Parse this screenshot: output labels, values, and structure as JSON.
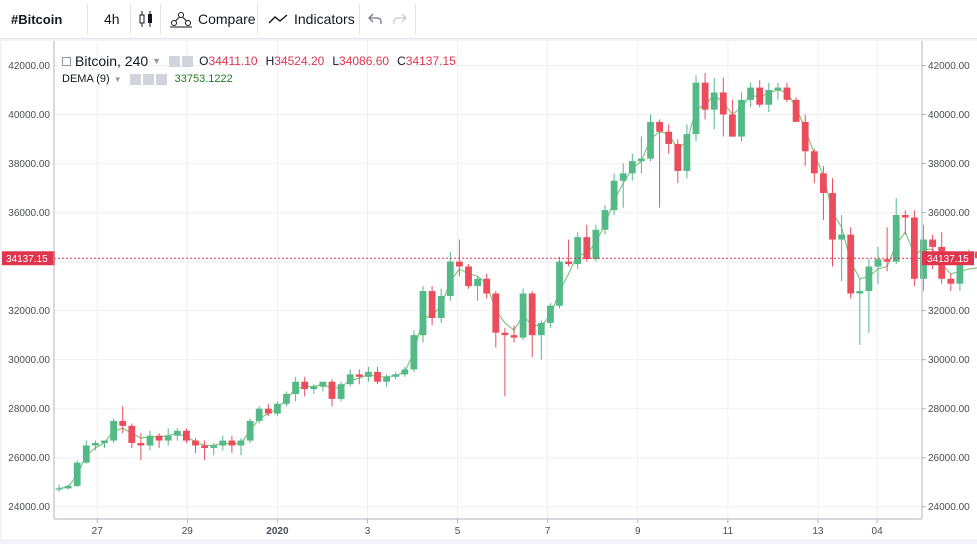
{
  "toolbar": {
    "symbol": "#Bitcoin",
    "interval": "4h",
    "compare_label": "Compare",
    "indicators_label": "Indicators"
  },
  "legend": {
    "symbol": "Bitcoin, 240",
    "o_label": "O",
    "o_value": "34411.10",
    "h_label": "H",
    "h_value": "34524.20",
    "l_label": "L",
    "l_value": "34086.60",
    "c_label": "C",
    "c_value": "34137.15",
    "indicator_name": "DEMA (9)",
    "indicator_value": "33753.1222"
  },
  "price_label": "34137.15",
  "colors": {
    "up": "#53b987",
    "down": "#eb4d5c",
    "dema": "#83c587",
    "price_line": "#e0354f"
  },
  "chart_data": {
    "type": "candlestick",
    "ylim": [
      23500,
      43000
    ],
    "y_ticks": [
      "42000.00",
      "40000.00",
      "38000.00",
      "36000.00",
      "34000.00",
      "32000.00",
      "30000.00",
      "28000.00",
      "26000.00",
      "24000.00"
    ],
    "y_tick_values": [
      42000,
      40000,
      38000,
      36000,
      34000,
      32000,
      30000,
      28000,
      26000,
      24000
    ],
    "x_ticks": [
      "27",
      "29",
      "2020",
      "3",
      "5",
      "7",
      "9",
      "11",
      "13",
      "04"
    ],
    "x_tick_index": [
      4.2,
      14.1,
      24.0,
      33.9,
      43.8,
      53.7,
      63.6,
      73.5,
      83.4,
      89.9
    ],
    "last_price": 34137.15,
    "ohlc": [
      [
        24700,
        24900,
        24600,
        24750
      ],
      [
        24750,
        24900,
        24700,
        24850
      ],
      [
        24850,
        25900,
        24800,
        25800
      ],
      [
        25800,
        26700,
        25750,
        26500
      ],
      [
        26500,
        26700,
        26300,
        26600
      ],
      [
        26600,
        26700,
        26400,
        26700
      ],
      [
        26700,
        27600,
        26600,
        27500
      ],
      [
        27500,
        28100,
        27000,
        27300
      ],
      [
        27300,
        27400,
        26400,
        26600
      ],
      [
        26600,
        27000,
        25900,
        26500
      ],
      [
        26500,
        27100,
        26300,
        26900
      ],
      [
        26900,
        27000,
        26400,
        26700
      ],
      [
        26700,
        27200,
        26500,
        26900
      ],
      [
        26900,
        27200,
        26700,
        27100
      ],
      [
        27100,
        27200,
        26600,
        26700
      ],
      [
        26700,
        26800,
        26200,
        26500
      ],
      [
        26500,
        26700,
        25900,
        26400
      ],
      [
        26400,
        26600,
        26100,
        26500
      ],
      [
        26500,
        26900,
        26300,
        26700
      ],
      [
        26700,
        26900,
        26200,
        26500
      ],
      [
        26500,
        26800,
        26100,
        26700
      ],
      [
        26700,
        27600,
        26600,
        27500
      ],
      [
        27500,
        28100,
        27400,
        28000
      ],
      [
        28000,
        28200,
        27700,
        27800
      ],
      [
        27800,
        28300,
        27700,
        28200
      ],
      [
        28200,
        28700,
        28100,
        28600
      ],
      [
        28600,
        29300,
        28300,
        29100
      ],
      [
        29100,
        29300,
        28500,
        28800
      ],
      [
        28800,
        29000,
        28600,
        28900
      ],
      [
        28900,
        29100,
        28700,
        29100
      ],
      [
        29100,
        29200,
        28100,
        28400
      ],
      [
        28400,
        29100,
        28300,
        29000
      ],
      [
        29000,
        29600,
        28900,
        29400
      ],
      [
        29400,
        29600,
        29000,
        29300
      ],
      [
        29300,
        29700,
        29100,
        29500
      ],
      [
        29500,
        29700,
        29000,
        29100
      ],
      [
        29100,
        29400,
        28900,
        29300
      ],
      [
        29300,
        29500,
        29200,
        29400
      ],
      [
        29400,
        29700,
        29300,
        29600
      ],
      [
        29600,
        31200,
        29500,
        31000
      ],
      [
        31000,
        33000,
        30700,
        32800
      ],
      [
        32800,
        33000,
        31400,
        31700
      ],
      [
        31700,
        32900,
        31500,
        32600
      ],
      [
        32600,
        34400,
        32400,
        34000
      ],
      [
        34000,
        34900,
        33400,
        33800
      ],
      [
        33800,
        33900,
        32900,
        33000
      ],
      [
        33000,
        33400,
        32400,
        33300
      ],
      [
        33300,
        33500,
        32500,
        32700
      ],
      [
        32700,
        32800,
        30500,
        31100
      ],
      [
        31100,
        31300,
        28500,
        31000
      ],
      [
        31000,
        31400,
        30700,
        30900
      ],
      [
        30900,
        32900,
        30800,
        32700
      ],
      [
        32700,
        32800,
        30100,
        31000
      ],
      [
        31000,
        31600,
        30000,
        31500
      ],
      [
        31500,
        32300,
        31300,
        32200
      ],
      [
        32200,
        34200,
        32100,
        34000
      ],
      [
        34000,
        34900,
        33800,
        33900
      ],
      [
        33900,
        35200,
        33700,
        35000
      ],
      [
        35000,
        35500,
        34000,
        34100
      ],
      [
        34100,
        35500,
        34000,
        35300
      ],
      [
        35300,
        36300,
        35100,
        36100
      ],
      [
        36100,
        37600,
        35900,
        37300
      ],
      [
        37300,
        38000,
        36200,
        37600
      ],
      [
        37600,
        38400,
        37300,
        38100
      ],
      [
        38100,
        39100,
        37600,
        38200
      ],
      [
        38200,
        40000,
        38100,
        39700
      ],
      [
        39700,
        39800,
        36200,
        39300
      ],
      [
        39300,
        39600,
        38400,
        38800
      ],
      [
        38800,
        39000,
        37200,
        37700
      ],
      [
        37700,
        39600,
        37400,
        39200
      ],
      [
        39200,
        41600,
        38900,
        41300
      ],
      [
        41300,
        41700,
        39800,
        40200
      ],
      [
        40200,
        41500,
        39400,
        40900
      ],
      [
        40900,
        41500,
        39100,
        40000
      ],
      [
        40000,
        40600,
        39100,
        39100
      ],
      [
        39100,
        40900,
        38900,
        40600
      ],
      [
        40600,
        41300,
        40300,
        41100
      ],
      [
        41100,
        41400,
        40300,
        40400
      ],
      [
        40400,
        41300,
        40100,
        41000
      ],
      [
        41000,
        41300,
        40600,
        41100
      ],
      [
        41100,
        41300,
        40500,
        40600
      ],
      [
        40600,
        40700,
        39700,
        39700
      ],
      [
        39700,
        40000,
        37900,
        38500
      ],
      [
        38500,
        38600,
        37200,
        37600
      ],
      [
        37600,
        37900,
        35700,
        36800
      ],
      [
        36800,
        37400,
        33800,
        34900
      ],
      [
        34900,
        35900,
        33200,
        35100
      ],
      [
        35100,
        35400,
        32500,
        32700
      ],
      [
        32700,
        33300,
        30600,
        32800
      ],
      [
        32800,
        34100,
        31100,
        33800
      ],
      [
        33800,
        34600,
        33100,
        34100
      ],
      [
        34100,
        35400,
        33600,
        34000
      ],
      [
        34000,
        36600,
        33900,
        35900
      ],
      [
        35900,
        36100,
        35100,
        35800
      ],
      [
        35800,
        36100,
        33000,
        33300
      ],
      [
        33300,
        35500,
        32800,
        34900
      ],
      [
        34900,
        35100,
        33700,
        34600
      ],
      [
        34600,
        35200,
        33100,
        33300
      ],
      [
        33300,
        33500,
        32800,
        33100
      ],
      [
        33100,
        34400,
        32800,
        34200
      ],
      [
        34200,
        34500,
        34100,
        34200
      ],
      [
        34411.1,
        34524.2,
        34086.6,
        34137.15
      ]
    ],
    "dema": [
      24750,
      24800,
      25300,
      26100,
      26400,
      26600,
      27100,
      27200,
      27000,
      26800,
      26850,
      26850,
      26900,
      27000,
      26850,
      26650,
      26500,
      26500,
      26600,
      26550,
      26600,
      27100,
      27600,
      27800,
      28000,
      28400,
      28800,
      28900,
      28900,
      29000,
      28800,
      28900,
      29150,
      29250,
      29400,
      29300,
      29300,
      29350,
      29500,
      30300,
      31700,
      31800,
      32200,
      33200,
      33700,
      33500,
      33400,
      33100,
      32000,
      31500,
      31200,
      31800,
      31400,
      31400,
      31800,
      32800,
      33500,
      34300,
      34300,
      34800,
      35500,
      36500,
      37200,
      37800,
      38100,
      39000,
      39300,
      39200,
      38600,
      38900,
      40200,
      40400,
      40800,
      40500,
      40000,
      40300,
      40800,
      40700,
      40900,
      41000,
      40900,
      40300,
      39400,
      38400,
      37500,
      36000,
      35400,
      34000,
      33300,
      33400,
      33700,
      33800,
      34700,
      35200,
      34300,
      34500,
      34500,
      33900,
      33500,
      33600,
      33700,
      33753.12
    ]
  }
}
